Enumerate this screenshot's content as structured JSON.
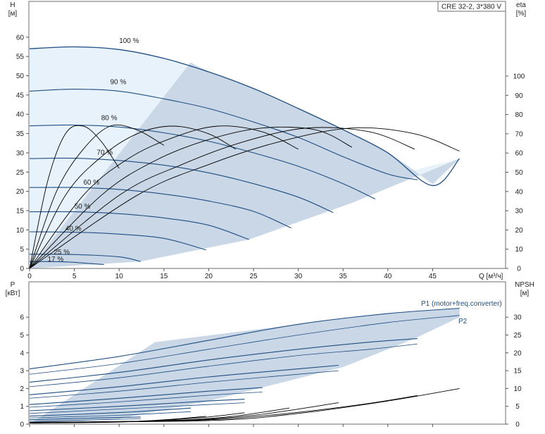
{
  "chart_data": [
    {
      "type": "line",
      "title": "CRE 32-2, 3*380 V",
      "ylabel_left": "H",
      "ylabel_left_unit": "[м]",
      "ylabel_right": "eta",
      "ylabel_right_unit": "[%]",
      "xlabel": "Q [м³/ч]",
      "xlim": [
        0,
        53
      ],
      "ylim_left": [
        0,
        64
      ],
      "ylim_right": [
        0,
        128
      ],
      "x_ticks": [
        0,
        5,
        10,
        15,
        20,
        25,
        30,
        35,
        40,
        45
      ],
      "y_ticks_left": [
        0,
        5,
        10,
        15,
        20,
        25,
        30,
        35,
        40,
        45,
        50,
        55,
        60
      ],
      "y_ticks_right": [
        0,
        10,
        20,
        30,
        40,
        50,
        60,
        70,
        80,
        90,
        100
      ],
      "grid": false,
      "colors": {
        "curve": "#1f4e82",
        "area": "#c9d7e6",
        "area_light": "#e8f2fb",
        "eta": "#000000"
      },
      "speed_curves": [
        {
          "label": "100 %",
          "qmax": 48,
          "points": [
            [
              0,
              57
            ],
            [
              5,
              57.5
            ],
            [
              10,
              56.8
            ],
            [
              15,
              54.5
            ],
            [
              20,
              51
            ],
            [
              25,
              46.7
            ],
            [
              30,
              41.5
            ],
            [
              35,
              36
            ],
            [
              40,
              30
            ],
            [
              45,
              21.5
            ],
            [
              48,
              28.5
            ]
          ]
        },
        {
          "label": "90 %",
          "qmax": 43.3,
          "points": [
            [
              0,
              46
            ],
            [
              5,
              46.5
            ],
            [
              10,
              46
            ],
            [
              15,
              44
            ],
            [
              20,
              41.5
            ],
            [
              25,
              38
            ],
            [
              30,
              34
            ],
            [
              35,
              29
            ],
            [
              40,
              24.5
            ],
            [
              43.3,
              23
            ]
          ]
        },
        {
          "label": "80 %",
          "qmax": 38.6,
          "points": [
            [
              0,
              37
            ],
            [
              5,
              37.2
            ],
            [
              10,
              36.7
            ],
            [
              15,
              35.2
            ],
            [
              20,
              33
            ],
            [
              25,
              30
            ],
            [
              30,
              26.5
            ],
            [
              35,
              22
            ],
            [
              38.6,
              18
            ]
          ]
        },
        {
          "label": "70 %",
          "qmax": 33.9,
          "points": [
            [
              0,
              28.5
            ],
            [
              5,
              28.6
            ],
            [
              10,
              28
            ],
            [
              15,
              26.8
            ],
            [
              20,
              24.8
            ],
            [
              25,
              22
            ],
            [
              30,
              18.5
            ],
            [
              33.9,
              14.5
            ]
          ]
        },
        {
          "label": "60 %",
          "qmax": 29.2,
          "points": [
            [
              0,
              21
            ],
            [
              5,
              21
            ],
            [
              10,
              20.5
            ],
            [
              15,
              19.3
            ],
            [
              20,
              17.5
            ],
            [
              25,
              14.8
            ],
            [
              29.2,
              10.5
            ]
          ]
        },
        {
          "label": "50 %",
          "qmax": 24.5,
          "points": [
            [
              0,
              14.7
            ],
            [
              5,
              14.7
            ],
            [
              10,
              14.2
            ],
            [
              15,
              13.1
            ],
            [
              20,
              11.2
            ],
            [
              24.5,
              7.5
            ]
          ]
        },
        {
          "label": "40 %",
          "qmax": 19.7,
          "points": [
            [
              0,
              9.5
            ],
            [
              5,
              9.4
            ],
            [
              10,
              8.9
            ],
            [
              15,
              7.8
            ],
            [
              19.7,
              4.8
            ]
          ]
        },
        {
          "label": "25 %",
          "qmax": 12.4,
          "points": [
            [
              0,
              3.7
            ],
            [
              5,
              3.6
            ],
            [
              10,
              3.0
            ],
            [
              12.4,
              1.8
            ]
          ]
        },
        {
          "label": "17 %",
          "qmax": 8.3,
          "points": [
            [
              0,
              1.8
            ],
            [
              4,
              1.7
            ],
            [
              8.3,
              1.0
            ]
          ]
        }
      ],
      "eta_curves": [
        {
          "points": [
            [
              0,
              0
            ],
            [
              2,
              45
            ],
            [
              4,
              70
            ],
            [
              6,
              74
            ],
            [
              8,
              66
            ],
            [
              10,
              52
            ]
          ]
        },
        {
          "points": [
            [
              0,
              0
            ],
            [
              3,
              40
            ],
            [
              6,
              62
            ],
            [
              9,
              74
            ],
            [
              12,
              72
            ],
            [
              15,
              64
            ]
          ]
        },
        {
          "points": [
            [
              0,
              0
            ],
            [
              4,
              38
            ],
            [
              8,
              58
            ],
            [
              12,
              70
            ],
            [
              16,
              74
            ],
            [
              20,
              70
            ],
            [
              23,
              62
            ]
          ]
        },
        {
          "points": [
            [
              0,
              0
            ],
            [
              6,
              38
            ],
            [
              11,
              57
            ],
            [
              16,
              68
            ],
            [
              21,
              74
            ],
            [
              26,
              71
            ],
            [
              30,
              62
            ]
          ]
        },
        {
          "points": [
            [
              0,
              0
            ],
            [
              8,
              38
            ],
            [
              14,
              56
            ],
            [
              20,
              67
            ],
            [
              26,
              73
            ],
            [
              32,
              72
            ],
            [
              36,
              63
            ]
          ]
        },
        {
          "points": [
            [
              0,
              0
            ],
            [
              10,
              38
            ],
            [
              17,
              54
            ],
            [
              24,
              66
            ],
            [
              31,
              73
            ],
            [
              38,
              71
            ],
            [
              43,
              62
            ]
          ]
        },
        {
          "points": [
            [
              0,
              0
            ],
            [
              12,
              38
            ],
            [
              20,
              54
            ],
            [
              28,
              66
            ],
            [
              36,
              73
            ],
            [
              43,
              70
            ],
            [
              48,
              61
            ]
          ]
        }
      ]
    },
    {
      "type": "line",
      "ylabel_left": "P",
      "ylabel_left_unit": "[кВт]",
      "ylabel_right": "NPSH",
      "ylabel_right_unit": "[м]",
      "xlim": [
        0,
        53
      ],
      "ylim_left": [
        0,
        7
      ],
      "ylim_right": [
        0,
        35
      ],
      "y_ticks_left": [
        0,
        1,
        2,
        3,
        4,
        5,
        6
      ],
      "y_ticks_right": [
        0,
        5,
        10,
        15,
        20,
        25,
        30
      ],
      "series_labels": [
        "P1 (motor+freq.converter)",
        "P2"
      ],
      "p1_curves": [
        {
          "points": [
            [
              0,
              3.1
            ],
            [
              10,
              3.8
            ],
            [
              20,
              4.7
            ],
            [
              30,
              5.6
            ],
            [
              40,
              6.2
            ],
            [
              48,
              6.5
            ]
          ]
        },
        {
          "points": [
            [
              0,
              2.35
            ],
            [
              10,
              2.9
            ],
            [
              20,
              3.6
            ],
            [
              30,
              4.2
            ],
            [
              38,
              4.6
            ],
            [
              43.3,
              4.8
            ]
          ]
        },
        {
          "points": [
            [
              0,
              1.65
            ],
            [
              10,
              2.1
            ],
            [
              20,
              2.65
            ],
            [
              30,
              3.1
            ],
            [
              34.5,
              3.3
            ]
          ]
        },
        {
          "points": [
            [
              0,
              1.1
            ],
            [
              10,
              1.45
            ],
            [
              20,
              1.85
            ],
            [
              26,
              2.05
            ]
          ]
        },
        {
          "points": [
            [
              0,
              0.75
            ],
            [
              10,
              1.0
            ],
            [
              20,
              1.3
            ],
            [
              24,
              1.4
            ]
          ]
        },
        {
          "points": [
            [
              0,
              0.45
            ],
            [
              10,
              0.65
            ],
            [
              18,
              0.9
            ]
          ]
        },
        {
          "points": [
            [
              0,
              0.25
            ],
            [
              8,
              0.35
            ],
            [
              12.4,
              0.4
            ]
          ]
        }
      ],
      "p2_curves": [
        {
          "points": [
            [
              0,
              2.8
            ],
            [
              10,
              3.4
            ],
            [
              20,
              4.2
            ],
            [
              30,
              5.0
            ],
            [
              40,
              5.7
            ],
            [
              48,
              6.1
            ]
          ]
        },
        {
          "points": [
            [
              0,
              2.1
            ],
            [
              10,
              2.6
            ],
            [
              20,
              3.25
            ],
            [
              30,
              3.85
            ],
            [
              38,
              4.2
            ],
            [
              43.3,
              4.5
            ]
          ]
        },
        {
          "points": [
            [
              0,
              1.45
            ],
            [
              10,
              1.85
            ],
            [
              20,
              2.35
            ],
            [
              30,
              2.8
            ],
            [
              34.5,
              3.0
            ]
          ]
        },
        {
          "points": [
            [
              0,
              0.95
            ],
            [
              10,
              1.25
            ],
            [
              20,
              1.62
            ],
            [
              26,
              1.8
            ]
          ]
        },
        {
          "points": [
            [
              0,
              0.6
            ],
            [
              10,
              0.85
            ],
            [
              20,
              1.1
            ],
            [
              24,
              1.2
            ]
          ]
        },
        {
          "points": [
            [
              0,
              0.35
            ],
            [
              10,
              0.5
            ],
            [
              18,
              0.7
            ]
          ]
        },
        {
          "points": [
            [
              0,
              0.15
            ],
            [
              8,
              0.25
            ],
            [
              12.4,
              0.3
            ]
          ]
        }
      ],
      "npsh_curves": [
        {
          "points": [
            [
              0,
              0.5
            ],
            [
              20,
              1.0
            ],
            [
              30,
              3.0
            ],
            [
              40,
              6.5
            ],
            [
              48,
              10
            ]
          ]
        },
        {
          "points": [
            [
              0,
              0.5
            ],
            [
              18,
              1.0
            ],
            [
              28,
              2.8
            ],
            [
              37,
              5.5
            ],
            [
              43.3,
              8
            ]
          ]
        },
        {
          "points": [
            [
              0,
              0.5
            ],
            [
              16,
              1.0
            ],
            [
              25,
              2.5
            ],
            [
              34.5,
              6
            ]
          ]
        },
        {
          "points": [
            [
              0,
              0.5
            ],
            [
              14,
              0.9
            ],
            [
              22,
              2.0
            ],
            [
              29,
              4.5
            ]
          ]
        },
        {
          "points": [
            [
              0,
              0.4
            ],
            [
              12,
              0.8
            ],
            [
              19,
              1.8
            ],
            [
              24,
              3.2
            ]
          ]
        },
        {
          "points": [
            [
              0,
              0.3
            ],
            [
              10,
              0.6
            ],
            [
              16,
              1.4
            ],
            [
              19.7,
              2.2
            ]
          ]
        }
      ]
    }
  ]
}
